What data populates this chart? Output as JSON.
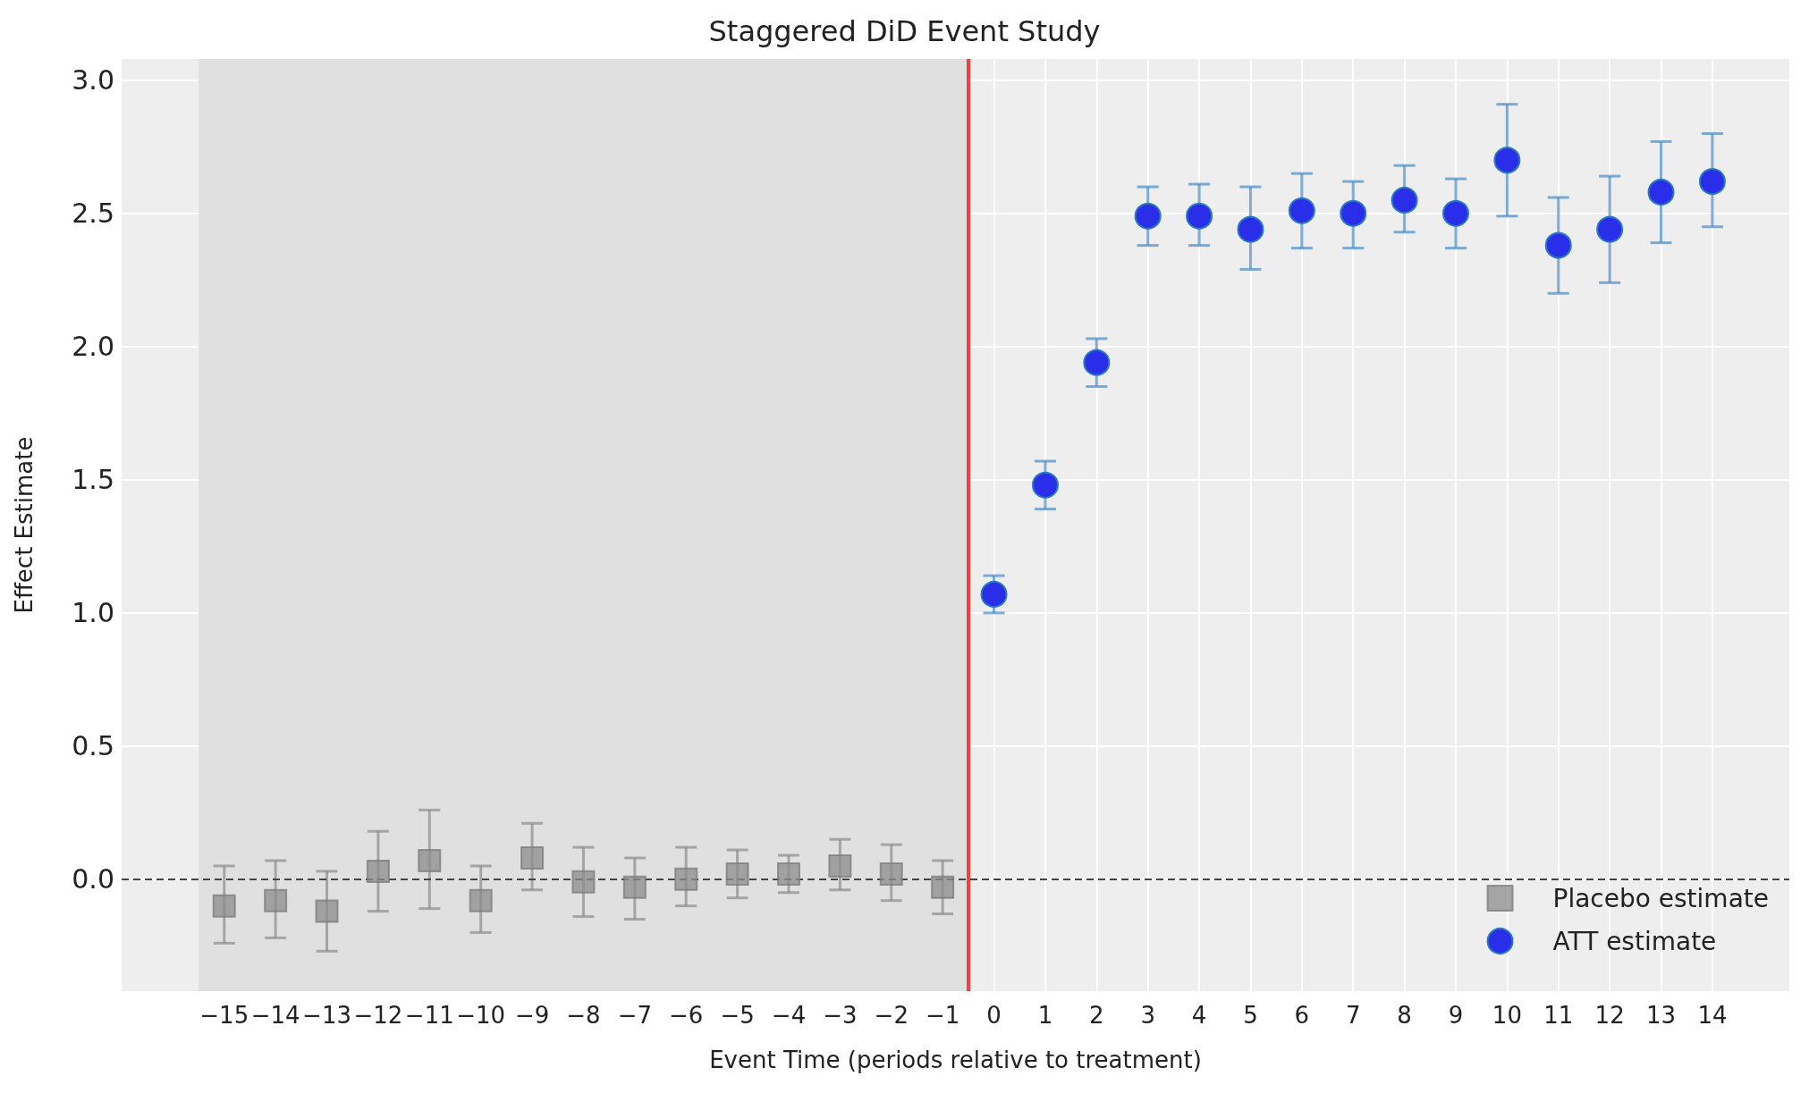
{
  "chart_data": {
    "type": "scatter",
    "title": "Staggered DiD Event Study",
    "xlabel": "Event Time (periods relative to treatment)",
    "ylabel": "Effect Estimate",
    "xlim": [
      -17,
      15.5
    ],
    "ylim": [
      -0.42,
      3.08
    ],
    "xticks": [
      {
        "value": -15,
        "label": "−15"
      },
      {
        "value": -14,
        "label": "−14"
      },
      {
        "value": -13,
        "label": "−13"
      },
      {
        "value": -12,
        "label": "−12"
      },
      {
        "value": -11,
        "label": "−11"
      },
      {
        "value": -10,
        "label": "−10"
      },
      {
        "value": -9,
        "label": "−9"
      },
      {
        "value": -8,
        "label": "−8"
      },
      {
        "value": -7,
        "label": "−7"
      },
      {
        "value": -6,
        "label": "−6"
      },
      {
        "value": -5,
        "label": "−5"
      },
      {
        "value": -4,
        "label": "−4"
      },
      {
        "value": -3,
        "label": "−3"
      },
      {
        "value": -2,
        "label": "−2"
      },
      {
        "value": -1,
        "label": "−1"
      },
      0,
      1,
      2,
      3,
      4,
      5,
      6,
      7,
      8,
      9,
      10,
      11,
      12,
      13,
      14
    ],
    "yticks": [
      {
        "value": 0,
        "label": "0.0"
      },
      0.5,
      {
        "value": 1,
        "label": "1.0"
      },
      1.5,
      {
        "value": 2,
        "label": "2.0"
      },
      2.5,
      {
        "value": 3,
        "label": "3.0"
      }
    ],
    "grid": true,
    "legend": "bottom right",
    "series": [
      {
        "name": "Placebo estimate",
        "type": "scatter",
        "marker": "square",
        "color": "#8c8c8c",
        "x": [
          -15,
          -14,
          -13,
          -12,
          -11,
          -10,
          -9,
          -8,
          -7,
          -6,
          -5,
          -4,
          -3,
          -2,
          -1
        ],
        "values": [
          -0.1,
          -0.08,
          -0.12,
          0.03,
          0.07,
          -0.08,
          0.08,
          -0.01,
          -0.03,
          0.0,
          0.02,
          0.02,
          0.05,
          0.02,
          -0.03
        ],
        "errors": [
          [
            -0.24,
            0.05
          ],
          [
            -0.22,
            0.07
          ],
          [
            -0.27,
            0.03
          ],
          [
            -0.12,
            0.18
          ],
          [
            -0.11,
            0.26
          ],
          [
            -0.2,
            0.05
          ],
          [
            -0.04,
            0.21
          ],
          [
            -0.14,
            0.12
          ],
          [
            -0.15,
            0.08
          ],
          [
            -0.1,
            0.12
          ],
          [
            -0.07,
            0.11
          ],
          [
            -0.05,
            0.09
          ],
          [
            -0.04,
            0.15
          ],
          [
            -0.08,
            0.13
          ],
          [
            -0.13,
            0.07
          ]
        ]
      },
      {
        "name": "ATT estimate",
        "type": "scatter",
        "marker": "circle",
        "color": "#2a2ee8",
        "x": [
          0,
          1,
          2,
          3,
          4,
          5,
          6,
          7,
          8,
          9,
          10,
          11,
          12,
          13,
          14
        ],
        "values": [
          1.07,
          1.48,
          1.94,
          2.49,
          2.49,
          2.44,
          2.51,
          2.5,
          2.55,
          2.5,
          2.7,
          2.38,
          2.44,
          2.58,
          2.62
        ],
        "errors": [
          [
            1.0,
            1.14
          ],
          [
            1.39,
            1.57
          ],
          [
            1.85,
            2.03
          ],
          [
            2.38,
            2.6
          ],
          [
            2.38,
            2.61
          ],
          [
            2.29,
            2.6
          ],
          [
            2.37,
            2.65
          ],
          [
            2.37,
            2.62
          ],
          [
            2.43,
            2.68
          ],
          [
            2.37,
            2.63
          ],
          [
            2.49,
            2.91
          ],
          [
            2.2,
            2.56
          ],
          [
            2.24,
            2.64
          ],
          [
            2.39,
            2.77
          ],
          [
            2.45,
            2.8
          ]
        ]
      }
    ],
    "ref_lines": [
      {
        "axis": "y",
        "value": 0,
        "color": "#444444",
        "line_style": "dashed"
      },
      {
        "axis": "x",
        "value": -0.5,
        "color": "#f04040",
        "line_style": "solid"
      }
    ],
    "bands": [
      {
        "axis": "x",
        "from": -15.5,
        "to": -0.5,
        "color": "#e0e0e0"
      }
    ]
  }
}
